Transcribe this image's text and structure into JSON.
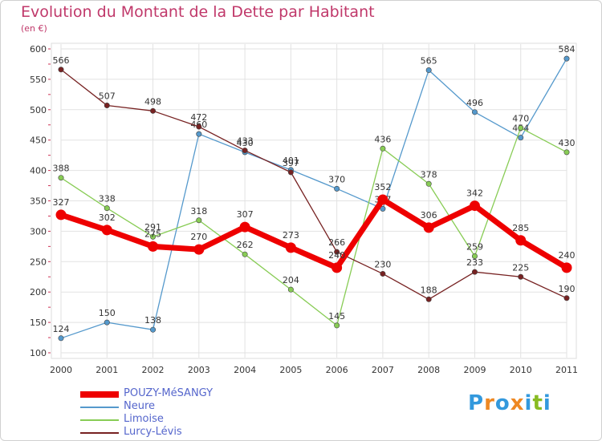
{
  "chart_data": {
    "type": "line",
    "title": "Evolution du Montant de la Dette par Habitant",
    "subtitle": "(en €)",
    "x": [
      "2000",
      "2001",
      "2002",
      "2003",
      "2004",
      "2005",
      "2006",
      "2007",
      "2008",
      "2009",
      "2010",
      "2011"
    ],
    "ylim": [
      100,
      600
    ],
    "yticks": [
      100,
      150,
      200,
      250,
      300,
      350,
      400,
      450,
      500,
      550,
      600
    ],
    "grid": true,
    "legend_position": "bottom-left",
    "series": [
      {
        "name": "POUZY-MéSANGY",
        "color": "#ee0000",
        "values": [
          327,
          302,
          275,
          270,
          307,
          273,
          240,
          352,
          306,
          342,
          285,
          240
        ]
      },
      {
        "name": "Neure",
        "color": "#5599cc",
        "values": [
          124,
          150,
          138,
          460,
          430,
          401,
          370,
          337,
          565,
          496,
          454,
          584
        ]
      },
      {
        "name": "Limoise",
        "color": "#88cc55",
        "values": [
          388,
          338,
          291,
          318,
          262,
          204,
          145,
          436,
          378,
          259,
          470,
          430
        ]
      },
      {
        "name": "Lurcy-Lévis",
        "color": "#772222",
        "values": [
          566,
          507,
          498,
          472,
          433,
          397,
          266,
          230,
          188,
          233,
          225,
          190
        ]
      }
    ]
  },
  "logo": {
    "text": "Proxiti",
    "colors": [
      "#3399dd",
      "#ee8822",
      "#3399dd",
      "#ee8822",
      "#3399dd",
      "#88bb22",
      "#3399dd"
    ]
  }
}
